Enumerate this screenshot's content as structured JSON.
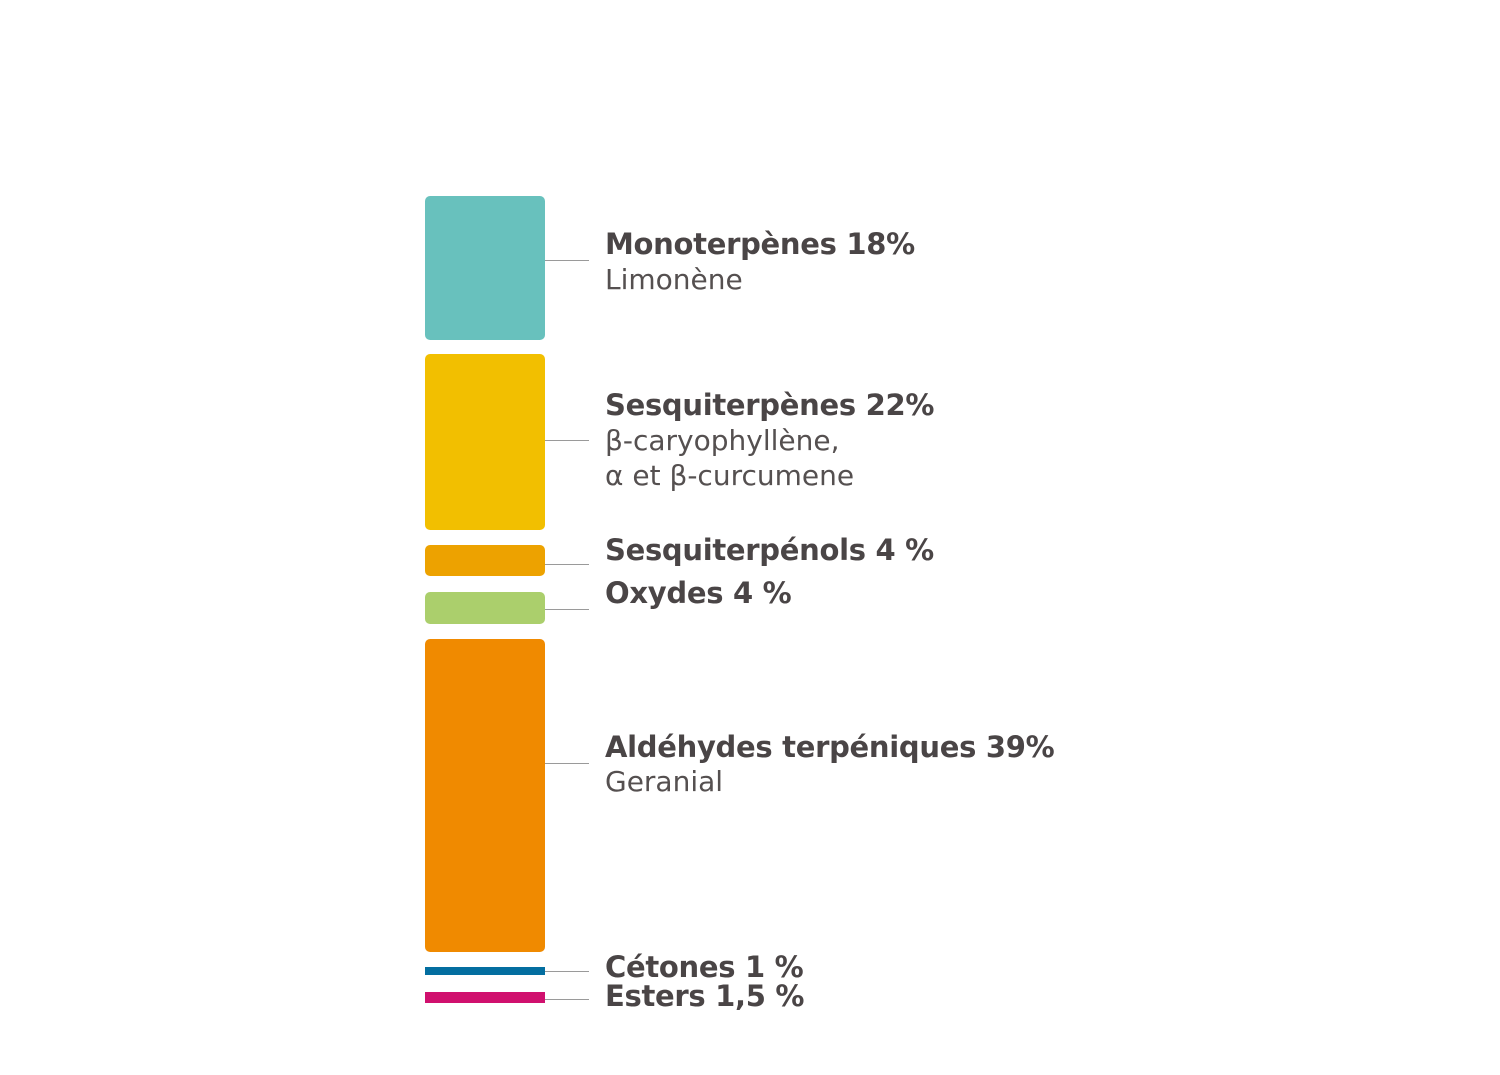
{
  "chart_data": {
    "type": "bar",
    "stacked": true,
    "orientation": "vertical",
    "segments": [
      {
        "name": "Monoterpènes",
        "value": 18,
        "label": "Monoterpènes 18%",
        "detail": [
          "Limonène"
        ],
        "color": "#68c1bd"
      },
      {
        "name": "Sesquiterpènes",
        "value": 22,
        "label": "Sesquiterpènes 22%",
        "detail": [
          "β-caryophyllène,",
          "α et β-curcumene"
        ],
        "color": "#f2bf00"
      },
      {
        "name": "Sesquiterpénols",
        "value": 4,
        "label": "Sesquiterpénols 4 %",
        "detail": [],
        "color": "#eda200"
      },
      {
        "name": "Oxydes",
        "value": 4,
        "label": "Oxydes 4 %",
        "detail": [],
        "color": "#abcf6c"
      },
      {
        "name": "Aldéhydes terpéniques",
        "value": 39,
        "label": "Aldéhydes terpéniques 39%",
        "detail": [
          "Geranial"
        ],
        "color": "#f08a00"
      },
      {
        "name": "Cétones",
        "value": 1,
        "label": "Cétones  1 %",
        "detail": [],
        "color": "#036ea0"
      },
      {
        "name": "Esters",
        "value": 1.5,
        "label": "Esters 1,5 %",
        "detail": [],
        "color": "#d0106e"
      }
    ],
    "grid": false,
    "legend": "none"
  }
}
